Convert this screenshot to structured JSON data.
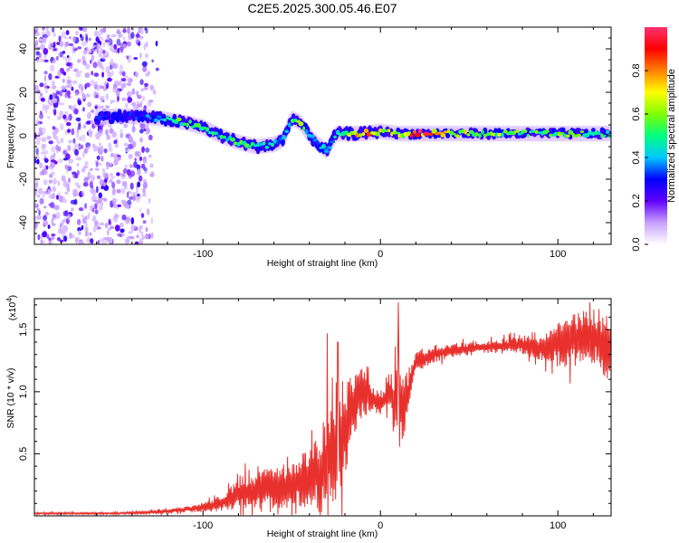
{
  "figure_title": "C2E5.2025.300.05.46.E07",
  "chart_data": [
    {
      "type": "heatmap",
      "name": "spectrogram",
      "xlabel": "Height of straight line (km)",
      "ylabel": "Frequency (Hz)",
      "xlim": [
        -195,
        130
      ],
      "ylim": [
        -50,
        50
      ],
      "xticks": [
        -100,
        0,
        100
      ],
      "xtick_labels": [
        "-100",
        "0",
        "100"
      ],
      "yticks": [
        -40,
        -20,
        0,
        20,
        40
      ],
      "ytick_labels": [
        "-40",
        "-20",
        "0",
        "20",
        "40"
      ],
      "colorbar": {
        "label": "Normalized spectral amplitude",
        "range": [
          0.0,
          1.0
        ],
        "ticks": [
          0.0,
          0.2,
          0.4,
          0.6,
          0.8
        ],
        "tick_labels": [
          "0.0",
          "0.2",
          "0.4",
          "0.6",
          "0.8"
        ],
        "colors": [
          "#ffffff",
          "#c8a0ff",
          "#6000ff",
          "#0000ff",
          "#00c8ff",
          "#00ff80",
          "#80ff00",
          "#ffff00",
          "#ff8000",
          "#ff0000",
          "#ff3070"
        ]
      },
      "ridge": {
        "x": [
          -163,
          -150,
          -135,
          -125,
          -110,
          -100,
          -90,
          -80,
          -70,
          -60,
          -55,
          -50,
          -45,
          -40,
          -35,
          -30,
          -25,
          -20,
          -10,
          0,
          10,
          20,
          40,
          60,
          80,
          100,
          120,
          130
        ],
        "frequency": [
          8,
          9,
          9,
          8,
          6,
          4,
          0,
          -3,
          -5,
          -4,
          -2,
          8,
          6,
          0,
          -4,
          -7,
          1,
          1,
          1,
          2,
          1,
          1,
          1,
          1,
          1,
          1,
          1,
          1
        ],
        "amplitude": [
          0.3,
          0.3,
          0.35,
          0.4,
          0.6,
          0.5,
          0.5,
          0.55,
          0.5,
          0.45,
          0.4,
          0.5,
          0.6,
          0.5,
          0.45,
          0.4,
          0.5,
          0.65,
          0.85,
          0.75,
          0.7,
          0.95,
          0.8,
          0.65,
          0.6,
          0.6,
          0.55,
          0.5
        ]
      },
      "noise_region_x": [
        -195,
        -125
      ]
    },
    {
      "type": "line",
      "name": "snr",
      "xlabel": "Height of straight line (km)",
      "ylabel": "SNR (10 * v/v)",
      "y_scale_label": "(x10",
      "y_scale_exponent": "4",
      "y_scale_close": ")",
      "xlim": [
        -195,
        130
      ],
      "ylim": [
        0,
        1.75
      ],
      "xticks": [
        -100,
        0,
        100
      ],
      "xtick_labels": [
        "-100",
        "0",
        "100"
      ],
      "yticks": [
        0.5,
        1.0,
        1.5
      ],
      "ytick_labels": [
        "0.5",
        "1.0",
        "1.5"
      ],
      "color": "#e8302c",
      "envelope": {
        "x": [
          -195,
          -150,
          -125,
          -110,
          -100,
          -90,
          -80,
          -70,
          -60,
          -50,
          -40,
          -35,
          -30,
          -25,
          -20,
          -15,
          -10,
          -5,
          0,
          5,
          10,
          15,
          20,
          30,
          40,
          50,
          60,
          70,
          80,
          90,
          100,
          110,
          120,
          130
        ],
        "mean": [
          0.02,
          0.02,
          0.03,
          0.05,
          0.07,
          0.1,
          0.18,
          0.2,
          0.22,
          0.25,
          0.3,
          0.35,
          0.45,
          0.6,
          0.7,
          0.9,
          1.0,
          0.95,
          0.9,
          1.0,
          0.85,
          0.95,
          1.25,
          1.3,
          1.33,
          1.35,
          1.36,
          1.37,
          1.38,
          1.35,
          1.4,
          1.42,
          1.45,
          1.35
        ],
        "spread": [
          0.01,
          0.01,
          0.02,
          0.03,
          0.05,
          0.08,
          0.18,
          0.2,
          0.22,
          0.25,
          0.3,
          0.4,
          0.55,
          0.6,
          0.5,
          0.3,
          0.25,
          0.15,
          0.1,
          0.2,
          0.5,
          0.3,
          0.12,
          0.08,
          0.07,
          0.07,
          0.06,
          0.08,
          0.1,
          0.12,
          0.25,
          0.3,
          0.3,
          0.35
        ]
      },
      "peaks": [
        {
          "x": -30,
          "y": 1.47
        },
        {
          "x": -24,
          "y": 1.4
        },
        {
          "x": 10,
          "y": 1.72
        },
        {
          "x": 118,
          "y": 1.72
        }
      ]
    }
  ]
}
